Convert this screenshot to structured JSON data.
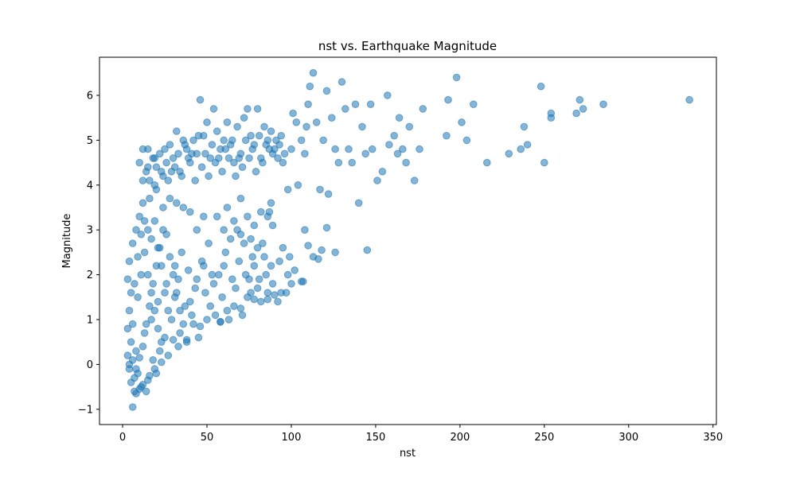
{
  "chart_data": {
    "type": "scatter",
    "title": "nst vs. Earthquake Magnitude",
    "xlabel": "nst",
    "ylabel": "Magnitude",
    "xlim": [
      -13.7,
      352
    ],
    "ylim": [
      -1.34,
      6.85
    ],
    "x_ticks": [
      0,
      50,
      100,
      150,
      200,
      250,
      300,
      350
    ],
    "x_tick_labels": [
      "0",
      "50",
      "100",
      "150",
      "200",
      "250",
      "300",
      "350"
    ],
    "y_ticks": [
      -1,
      0,
      1,
      2,
      3,
      4,
      5,
      6
    ],
    "y_tick_labels": [
      "−1",
      "0",
      "1",
      "2",
      "3",
      "4",
      "5",
      "6"
    ],
    "grid": false,
    "legend": "none",
    "marker_color": "#1f77b4",
    "marker_alpha": 0.55,
    "points": [
      {
        "x": 6,
        "y": -0.95
      },
      {
        "x": 8,
        "y": -0.65
      },
      {
        "x": 10,
        "y": -0.55
      },
      {
        "x": 14,
        "y": -0.6
      },
      {
        "x": 5,
        "y": -0.4
      },
      {
        "x": 7,
        "y": -0.3
      },
      {
        "x": 9,
        "y": -0.2
      },
      {
        "x": 4,
        "y": -0.1
      },
      {
        "x": 3,
        "y": 0.2
      },
      {
        "x": 12,
        "y": -0.45
      },
      {
        "x": 16,
        "y": -0.25
      },
      {
        "x": 20,
        "y": -0.2
      },
      {
        "x": 18,
        "y": 0.1
      },
      {
        "x": 22,
        "y": 0.3
      },
      {
        "x": 25,
        "y": 0.6
      },
      {
        "x": 30,
        "y": 0.55
      },
      {
        "x": 34,
        "y": 0.7
      },
      {
        "x": 38,
        "y": 0.5
      },
      {
        "x": 42,
        "y": 0.9
      },
      {
        "x": 46,
        "y": 0.85
      },
      {
        "x": 50,
        "y": 1.0
      },
      {
        "x": 55,
        "y": 1.1
      },
      {
        "x": 58,
        "y": 0.95
      },
      {
        "x": 62,
        "y": 1.2
      },
      {
        "x": 66,
        "y": 1.3
      },
      {
        "x": 70,
        "y": 1.25
      },
      {
        "x": 74,
        "y": 1.5
      },
      {
        "x": 78,
        "y": 1.45
      },
      {
        "x": 82,
        "y": 1.4
      },
      {
        "x": 86,
        "y": 1.6
      },
      {
        "x": 90,
        "y": 1.55
      },
      {
        "x": 94,
        "y": 1.6
      },
      {
        "x": 98,
        "y": 2.0
      },
      {
        "x": 102,
        "y": 2.1
      },
      {
        "x": 106,
        "y": 1.85
      },
      {
        "x": 100,
        "y": 1.8
      },
      {
        "x": 88,
        "y": 2.2
      },
      {
        "x": 84,
        "y": 2.4
      },
      {
        "x": 80,
        "y": 2.6
      },
      {
        "x": 76,
        "y": 2.8
      },
      {
        "x": 72,
        "y": 2.7
      },
      {
        "x": 68,
        "y": 3.0
      },
      {
        "x": 60,
        "y": 3.0
      },
      {
        "x": 56,
        "y": 3.3
      },
      {
        "x": 48,
        "y": 3.3
      },
      {
        "x": 44,
        "y": 3.0
      },
      {
        "x": 40,
        "y": 3.4
      },
      {
        "x": 36,
        "y": 3.5
      },
      {
        "x": 32,
        "y": 3.6
      },
      {
        "x": 28,
        "y": 3.7
      },
      {
        "x": 24,
        "y": 3.5
      },
      {
        "x": 20,
        "y": 3.9
      },
      {
        "x": 16,
        "y": 3.7
      },
      {
        "x": 12,
        "y": 3.6
      },
      {
        "x": 10,
        "y": 3.3
      },
      {
        "x": 8,
        "y": 3.0
      },
      {
        "x": 6,
        "y": 2.7
      },
      {
        "x": 4,
        "y": 2.3
      },
      {
        "x": 3,
        "y": 1.9
      },
      {
        "x": 5,
        "y": 1.6
      },
      {
        "x": 4,
        "y": 1.2
      },
      {
        "x": 3,
        "y": 0.8
      },
      {
        "x": 5,
        "y": 0.5
      },
      {
        "x": 8,
        "y": 0.3
      },
      {
        "x": 10,
        "y": 4.5
      },
      {
        "x": 12,
        "y": 4.8
      },
      {
        "x": 14,
        "y": 4.3
      },
      {
        "x": 16,
        "y": 4.1
      },
      {
        "x": 18,
        "y": 4.6
      },
      {
        "x": 20,
        "y": 4.4
      },
      {
        "x": 22,
        "y": 4.7
      },
      {
        "x": 24,
        "y": 4.2
      },
      {
        "x": 26,
        "y": 4.5
      },
      {
        "x": 28,
        "y": 4.9
      },
      {
        "x": 30,
        "y": 4.6
      },
      {
        "x": 32,
        "y": 5.2
      },
      {
        "x": 34,
        "y": 4.3
      },
      {
        "x": 36,
        "y": 5.0
      },
      {
        "x": 38,
        "y": 4.8
      },
      {
        "x": 40,
        "y": 4.5
      },
      {
        "x": 42,
        "y": 5.0
      },
      {
        "x": 44,
        "y": 4.7
      },
      {
        "x": 46,
        "y": 5.9
      },
      {
        "x": 48,
        "y": 5.1
      },
      {
        "x": 50,
        "y": 5.4
      },
      {
        "x": 52,
        "y": 4.6
      },
      {
        "x": 54,
        "y": 5.7
      },
      {
        "x": 56,
        "y": 5.2
      },
      {
        "x": 58,
        "y": 4.8
      },
      {
        "x": 60,
        "y": 5.0
      },
      {
        "x": 62,
        "y": 5.4
      },
      {
        "x": 64,
        "y": 4.9
      },
      {
        "x": 66,
        "y": 4.5
      },
      {
        "x": 68,
        "y": 5.3
      },
      {
        "x": 70,
        "y": 4.7
      },
      {
        "x": 72,
        "y": 5.5
      },
      {
        "x": 74,
        "y": 5.7
      },
      {
        "x": 76,
        "y": 5.1
      },
      {
        "x": 78,
        "y": 4.9
      },
      {
        "x": 80,
        "y": 5.7
      },
      {
        "x": 82,
        "y": 4.6
      },
      {
        "x": 84,
        "y": 5.3
      },
      {
        "x": 86,
        "y": 5.0
      },
      {
        "x": 88,
        "y": 5.2
      },
      {
        "x": 90,
        "y": 4.8
      },
      {
        "x": 92,
        "y": 4.6
      },
      {
        "x": 94,
        "y": 5.1
      },
      {
        "x": 96,
        "y": 4.7
      },
      {
        "x": 98,
        "y": 3.9
      },
      {
        "x": 100,
        "y": 4.8
      },
      {
        "x": 101,
        "y": 5.6
      },
      {
        "x": 103,
        "y": 5.4
      },
      {
        "x": 104,
        "y": 4.0
      },
      {
        "x": 106,
        "y": 5.0
      },
      {
        "x": 108,
        "y": 4.7
      },
      {
        "x": 109,
        "y": 5.3
      },
      {
        "x": 110,
        "y": 5.8
      },
      {
        "x": 111,
        "y": 6.2
      },
      {
        "x": 113,
        "y": 6.5
      },
      {
        "x": 115,
        "y": 5.4
      },
      {
        "x": 117,
        "y": 3.9
      },
      {
        "x": 119,
        "y": 5.0
      },
      {
        "x": 121,
        "y": 6.1
      },
      {
        "x": 122,
        "y": 3.8
      },
      {
        "x": 124,
        "y": 5.5
      },
      {
        "x": 126,
        "y": 4.8
      },
      {
        "x": 128,
        "y": 4.5
      },
      {
        "x": 130,
        "y": 6.3
      },
      {
        "x": 132,
        "y": 5.7
      },
      {
        "x": 134,
        "y": 4.8
      },
      {
        "x": 136,
        "y": 4.5
      },
      {
        "x": 138,
        "y": 5.8
      },
      {
        "x": 140,
        "y": 3.6
      },
      {
        "x": 142,
        "y": 5.3
      },
      {
        "x": 144,
        "y": 4.7
      },
      {
        "x": 145,
        "y": 2.55
      },
      {
        "x": 147,
        "y": 5.8
      },
      {
        "x": 148,
        "y": 4.8
      },
      {
        "x": 151,
        "y": 4.1
      },
      {
        "x": 154,
        "y": 4.3
      },
      {
        "x": 157,
        "y": 6.0
      },
      {
        "x": 158,
        "y": 4.9
      },
      {
        "x": 161,
        "y": 5.1
      },
      {
        "x": 163,
        "y": 4.7
      },
      {
        "x": 164,
        "y": 5.5
      },
      {
        "x": 166,
        "y": 4.8
      },
      {
        "x": 168,
        "y": 4.5
      },
      {
        "x": 170,
        "y": 5.3
      },
      {
        "x": 173,
        "y": 4.1
      },
      {
        "x": 176,
        "y": 4.8
      },
      {
        "x": 178,
        "y": 5.7
      },
      {
        "x": 192,
        "y": 5.1
      },
      {
        "x": 193,
        "y": 5.9
      },
      {
        "x": 198,
        "y": 6.4
      },
      {
        "x": 201,
        "y": 5.4
      },
      {
        "x": 204,
        "y": 5.0
      },
      {
        "x": 208,
        "y": 5.8
      },
      {
        "x": 216,
        "y": 4.5
      },
      {
        "x": 229,
        "y": 4.7
      },
      {
        "x": 236,
        "y": 4.8
      },
      {
        "x": 238,
        "y": 5.3
      },
      {
        "x": 240,
        "y": 4.9
      },
      {
        "x": 248,
        "y": 6.2
      },
      {
        "x": 250,
        "y": 4.5
      },
      {
        "x": 254,
        "y": 5.5
      },
      {
        "x": 254,
        "y": 5.6
      },
      {
        "x": 269,
        "y": 5.6
      },
      {
        "x": 271,
        "y": 5.9
      },
      {
        "x": 273,
        "y": 5.7
      },
      {
        "x": 285,
        "y": 5.8
      },
      {
        "x": 336,
        "y": 5.9
      },
      {
        "x": 108,
        "y": 3.0
      },
      {
        "x": 110,
        "y": 2.65
      },
      {
        "x": 113,
        "y": 2.4
      },
      {
        "x": 116,
        "y": 2.35
      },
      {
        "x": 118,
        "y": 2.55
      },
      {
        "x": 121,
        "y": 3.05
      },
      {
        "x": 126,
        "y": 2.5
      },
      {
        "x": 107,
        "y": 1.85
      },
      {
        "x": 97,
        "y": 1.6
      },
      {
        "x": 92,
        "y": 1.4
      },
      {
        "x": 86,
        "y": 1.45
      },
      {
        "x": 80,
        "y": 1.7
      },
      {
        "x": 76,
        "y": 1.6
      },
      {
        "x": 71,
        "y": 1.1
      },
      {
        "x": 63,
        "y": 1.0
      },
      {
        "x": 58,
        "y": 0.95
      },
      {
        "x": 52,
        "y": 1.3
      },
      {
        "x": 45,
        "y": 0.6
      },
      {
        "x": 38,
        "y": 0.55
      },
      {
        "x": 33,
        "y": 0.4
      },
      {
        "x": 27,
        "y": 0.2
      },
      {
        "x": 23,
        "y": 0.05
      },
      {
        "x": 19,
        "y": -0.1
      },
      {
        "x": 15,
        "y": -0.35
      },
      {
        "x": 11,
        "y": -0.5
      },
      {
        "x": 7,
        "y": -0.6
      },
      {
        "x": 13,
        "y": 0.7
      },
      {
        "x": 17,
        "y": 1.0
      },
      {
        "x": 21,
        "y": 1.4
      },
      {
        "x": 26,
        "y": 1.8
      },
      {
        "x": 31,
        "y": 2.2
      },
      {
        "x": 35,
        "y": 2.5
      },
      {
        "x": 39,
        "y": 2.1
      },
      {
        "x": 43,
        "y": 1.7
      },
      {
        "x": 47,
        "y": 2.3
      },
      {
        "x": 51,
        "y": 2.7
      },
      {
        "x": 57,
        "y": 2.0
      },
      {
        "x": 61,
        "y": 2.5
      },
      {
        "x": 65,
        "y": 1.9
      },
      {
        "x": 69,
        "y": 2.3
      },
      {
        "x": 73,
        "y": 2.0
      },
      {
        "x": 77,
        "y": 2.4
      },
      {
        "x": 81,
        "y": 1.9
      },
      {
        "x": 85,
        "y": 2.0
      },
      {
        "x": 89,
        "y": 1.8
      },
      {
        "x": 93,
        "y": 2.3
      },
      {
        "x": 9,
        "y": 1.5
      },
      {
        "x": 11,
        "y": 2.0
      },
      {
        "x": 13,
        "y": 2.5
      },
      {
        "x": 15,
        "y": 3.0
      },
      {
        "x": 17,
        "y": 2.8
      },
      {
        "x": 19,
        "y": 3.2
      },
      {
        "x": 21,
        "y": 2.6
      },
      {
        "x": 23,
        "y": 2.2
      },
      {
        "x": 25,
        "y": 1.6
      },
      {
        "x": 27,
        "y": 1.2
      },
      {
        "x": 29,
        "y": 1.0
      },
      {
        "x": 31,
        "y": 1.5
      },
      {
        "x": 33,
        "y": 1.9
      },
      {
        "x": 37,
        "y": 1.3
      },
      {
        "x": 41,
        "y": 1.1
      },
      {
        "x": 49,
        "y": 1.6
      },
      {
        "x": 53,
        "y": 2.0
      },
      {
        "x": 59,
        "y": 1.5
      },
      {
        "x": 67,
        "y": 1.7
      },
      {
        "x": 75,
        "y": 1.9
      },
      {
        "x": 6,
        "y": 0.9
      },
      {
        "x": 7,
        "y": 1.8
      },
      {
        "x": 9,
        "y": 2.4
      },
      {
        "x": 11,
        "y": 2.9
      },
      {
        "x": 13,
        "y": 3.2
      },
      {
        "x": 15,
        "y": 2.0
      },
      {
        "x": 17,
        "y": 1.6
      },
      {
        "x": 19,
        "y": 1.2
      },
      {
        "x": 21,
        "y": 0.8
      },
      {
        "x": 23,
        "y": 0.5
      },
      {
        "x": 4,
        "y": 0.0
      },
      {
        "x": 6,
        "y": 0.1
      },
      {
        "x": 8,
        "y": -0.1
      },
      {
        "x": 10,
        "y": 0.15
      },
      {
        "x": 12,
        "y": 0.4
      },
      {
        "x": 14,
        "y": 0.9
      },
      {
        "x": 16,
        "y": 1.3
      },
      {
        "x": 18,
        "y": 1.8
      },
      {
        "x": 20,
        "y": 2.2
      },
      {
        "x": 22,
        "y": 2.6
      },
      {
        "x": 24,
        "y": 3.0
      },
      {
        "x": 26,
        "y": 2.9
      },
      {
        "x": 28,
        "y": 2.4
      },
      {
        "x": 30,
        "y": 2.0
      },
      {
        "x": 32,
        "y": 1.6
      },
      {
        "x": 34,
        "y": 1.2
      },
      {
        "x": 36,
        "y": 0.9
      },
      {
        "x": 40,
        "y": 1.4
      },
      {
        "x": 44,
        "y": 1.9
      },
      {
        "x": 48,
        "y": 2.2
      },
      {
        "x": 54,
        "y": 1.8
      },
      {
        "x": 60,
        "y": 2.2
      },
      {
        "x": 64,
        "y": 2.8
      },
      {
        "x": 70,
        "y": 2.9
      },
      {
        "x": 78,
        "y": 2.2
      },
      {
        "x": 83,
        "y": 2.7
      },
      {
        "x": 87,
        "y": 3.4
      },
      {
        "x": 89,
        "y": 3.1
      },
      {
        "x": 95,
        "y": 2.6
      },
      {
        "x": 99,
        "y": 2.4
      },
      {
        "x": 12,
        "y": 4.1
      },
      {
        "x": 15,
        "y": 4.4
      },
      {
        "x": 19,
        "y": 4.0
      },
      {
        "x": 23,
        "y": 4.3
      },
      {
        "x": 27,
        "y": 4.1
      },
      {
        "x": 31,
        "y": 4.4
      },
      {
        "x": 35,
        "y": 4.2
      },
      {
        "x": 39,
        "y": 4.6
      },
      {
        "x": 43,
        "y": 4.1
      },
      {
        "x": 47,
        "y": 4.4
      },
      {
        "x": 51,
        "y": 4.2
      },
      {
        "x": 55,
        "y": 4.5
      },
      {
        "x": 59,
        "y": 4.3
      },
      {
        "x": 63,
        "y": 4.6
      },
      {
        "x": 67,
        "y": 4.2
      },
      {
        "x": 71,
        "y": 4.4
      },
      {
        "x": 75,
        "y": 4.6
      },
      {
        "x": 79,
        "y": 4.3
      },
      {
        "x": 83,
        "y": 4.5
      },
      {
        "x": 87,
        "y": 4.8
      },
      {
        "x": 91,
        "y": 5.0
      },
      {
        "x": 95,
        "y": 4.5
      },
      {
        "x": 15,
        "y": 4.8
      },
      {
        "x": 19,
        "y": 4.6
      },
      {
        "x": 25,
        "y": 4.8
      },
      {
        "x": 29,
        "y": 4.3
      },
      {
        "x": 33,
        "y": 4.7
      },
      {
        "x": 37,
        "y": 4.9
      },
      {
        "x": 41,
        "y": 4.7
      },
      {
        "x": 45,
        "y": 5.1
      },
      {
        "x": 49,
        "y": 4.7
      },
      {
        "x": 53,
        "y": 4.9
      },
      {
        "x": 57,
        "y": 4.6
      },
      {
        "x": 61,
        "y": 4.8
      },
      {
        "x": 65,
        "y": 5.0
      },
      {
        "x": 69,
        "y": 4.6
      },
      {
        "x": 73,
        "y": 5.0
      },
      {
        "x": 77,
        "y": 4.8
      },
      {
        "x": 81,
        "y": 5.1
      },
      {
        "x": 85,
        "y": 4.9
      },
      {
        "x": 89,
        "y": 4.7
      },
      {
        "x": 93,
        "y": 4.9
      },
      {
        "x": 62,
        "y": 3.5
      },
      {
        "x": 66,
        "y": 3.2
      },
      {
        "x": 70,
        "y": 3.7
      },
      {
        "x": 74,
        "y": 3.3
      },
      {
        "x": 78,
        "y": 3.1
      },
      {
        "x": 82,
        "y": 3.4
      },
      {
        "x": 86,
        "y": 3.3
      },
      {
        "x": 88,
        "y": 3.6
      }
    ]
  }
}
